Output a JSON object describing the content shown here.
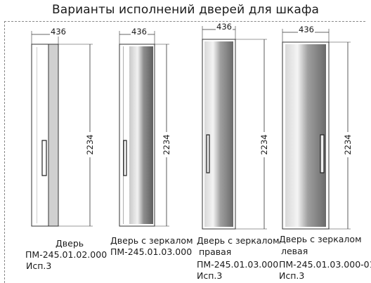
{
  "title": "Варианты исполнений дверей для шкафа",
  "doors": [
    {
      "width": "436",
      "height": "2234",
      "type": "plain",
      "name": "Дверь",
      "subname": "",
      "code": "ПМ-245.01.02.000",
      "variant": "Исп.3"
    },
    {
      "width": "436",
      "height": "2234",
      "type": "mirror",
      "name": "Дверь с зеркалом",
      "subname": "",
      "code": "ПМ-245.01.03.000",
      "variant": ""
    },
    {
      "width": "436",
      "height": "2234",
      "type": "mirror",
      "name": "Дверь с зеркалом",
      "subname": "правая",
      "code": "ПМ-245.01.03.000",
      "variant": "Исп.3"
    },
    {
      "width": "436",
      "height": "2234",
      "type": "mirror",
      "name": "Дверь с зеркалом",
      "subname": "левая",
      "code": "ПМ-245.01.03.000-01",
      "variant": "Исп.3"
    }
  ]
}
